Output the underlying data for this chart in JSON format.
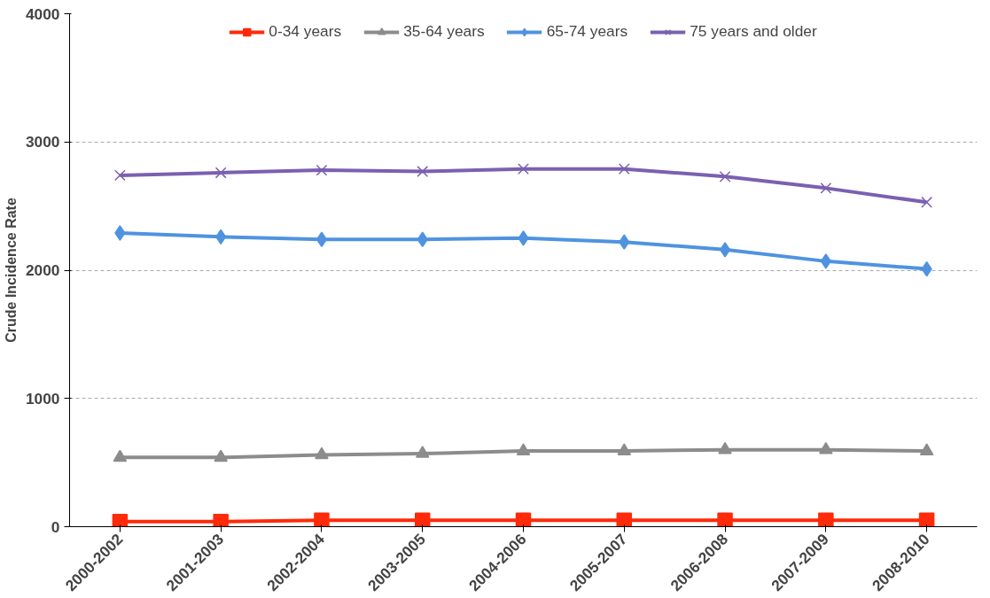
{
  "chart_data": {
    "type": "line",
    "ylabel": "Crude Incidence Rate",
    "categories": [
      "2000-2002",
      "2001-2003",
      "2002-2004",
      "2003-2005",
      "2004-2006",
      "2005-2007",
      "2006-2008",
      "2007-2009",
      "2008-2010"
    ],
    "series": [
      {
        "name": "0-34 years",
        "color": "#ff2a0a",
        "marker": "square",
        "values": [
          40,
          40,
          50,
          50,
          50,
          50,
          50,
          50,
          50
        ]
      },
      {
        "name": "35-64 years",
        "color": "#8c8c8c",
        "marker": "triangle",
        "values": [
          540,
          540,
          560,
          570,
          590,
          590,
          600,
          600,
          590
        ]
      },
      {
        "name": "65-74 years",
        "color": "#4f93e0",
        "marker": "diamond",
        "values": [
          2290,
          2260,
          2240,
          2240,
          2250,
          2220,
          2160,
          2070,
          2010
        ]
      },
      {
        "name": "75 years and older",
        "color": "#7b60b0",
        "marker": "x",
        "values": [
          2740,
          2760,
          2780,
          2770,
          2790,
          2790,
          2730,
          2640,
          2530
        ]
      }
    ],
    "ylim": [
      0,
      4000
    ],
    "yticks": [
      0,
      1000,
      2000,
      3000,
      4000
    ],
    "grid": "y",
    "legend": "top"
  }
}
